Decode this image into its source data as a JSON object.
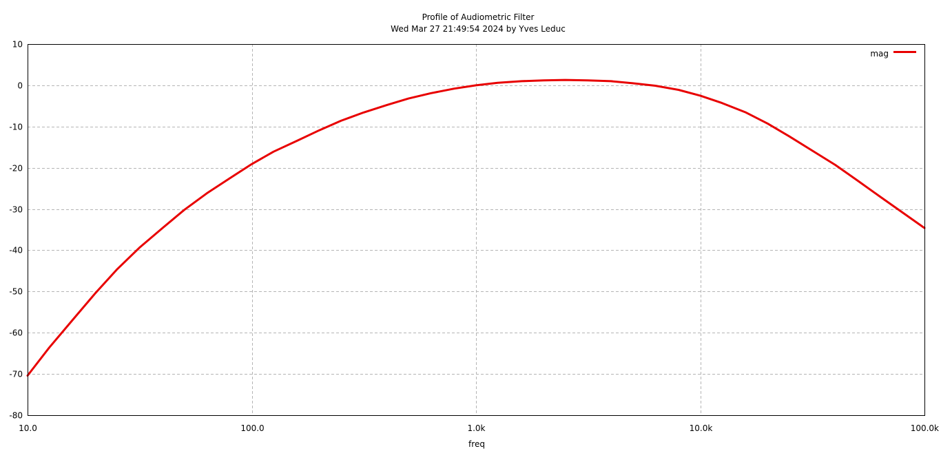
{
  "chart_data": {
    "type": "line",
    "title": "Profile of Audiometric Filter",
    "subtitle": "Wed Mar 27 21:49:54 2024 by Yves Leduc",
    "xlabel": "freq",
    "ylabel": "",
    "x_scale": "log",
    "xlim": [
      10,
      100000
    ],
    "ylim": [
      -80,
      10
    ],
    "x_ticks": [
      {
        "value": 10,
        "label": "10.0"
      },
      {
        "value": 100,
        "label": "100.0"
      },
      {
        "value": 1000,
        "label": "1.0k"
      },
      {
        "value": 10000,
        "label": "10.0k"
      },
      {
        "value": 100000,
        "label": "100.0k"
      }
    ],
    "y_ticks": [
      {
        "value": 10,
        "label": "10"
      },
      {
        "value": 0,
        "label": "0"
      },
      {
        "value": -10,
        "label": "-10"
      },
      {
        "value": -20,
        "label": "-20"
      },
      {
        "value": -30,
        "label": "-30"
      },
      {
        "value": -40,
        "label": "-40"
      },
      {
        "value": -50,
        "label": "-50"
      },
      {
        "value": -60,
        "label": "-60"
      },
      {
        "value": -70,
        "label": "-70"
      },
      {
        "value": -80,
        "label": "-80"
      }
    ],
    "grid": true,
    "legend_position": "top-right",
    "series": [
      {
        "name": "mag",
        "color": "#e80000",
        "x": [
          10,
          12.5,
          16,
          20,
          25,
          31.5,
          40,
          50,
          63,
          80,
          100,
          125,
          160,
          200,
          250,
          315,
          400,
          500,
          630,
          800,
          1000,
          1250,
          1600,
          2000,
          2500,
          3150,
          4000,
          5000,
          6300,
          8000,
          10000,
          12500,
          16000,
          20000,
          25000,
          31500,
          40000,
          50000,
          63000,
          80000,
          100000
        ],
        "y": [
          -70.4,
          -63.6,
          -56.7,
          -50.5,
          -44.7,
          -39.4,
          -34.6,
          -30.2,
          -26.2,
          -22.5,
          -19.1,
          -16.1,
          -13.4,
          -10.9,
          -8.6,
          -6.6,
          -4.8,
          -3.2,
          -1.9,
          -0.8,
          0.0,
          0.6,
          1.0,
          1.2,
          1.3,
          1.2,
          1.0,
          0.5,
          -0.1,
          -1.1,
          -2.5,
          -4.3,
          -6.6,
          -9.3,
          -12.4,
          -15.8,
          -19.3,
          -23.0,
          -26.9,
          -30.9,
          -34.6
        ]
      }
    ]
  }
}
